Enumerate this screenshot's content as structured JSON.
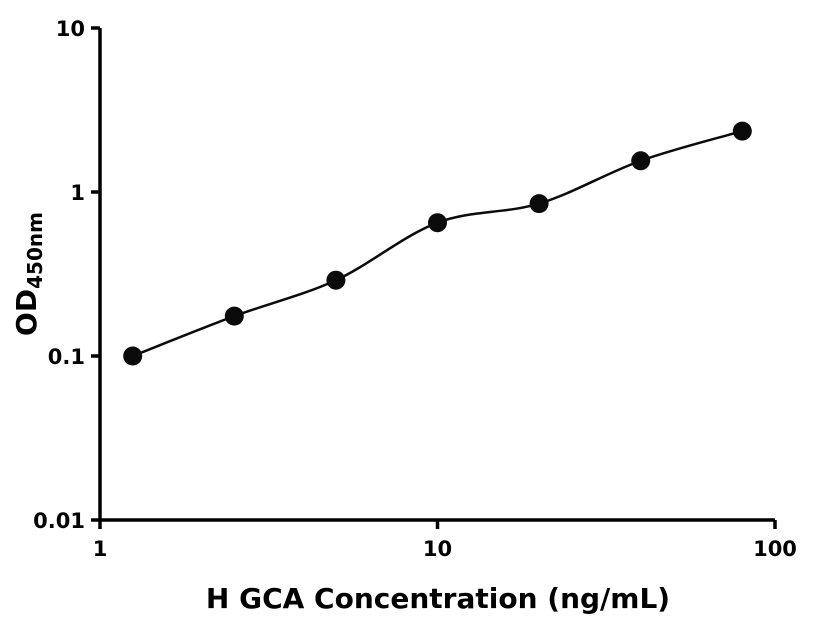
{
  "chart_data": {
    "type": "scatter",
    "title": "",
    "xlabel": "H GCA Concentration (ng/mL)",
    "ylabel": "OD",
    "ylabel_sub": "450nm",
    "xscale": "log",
    "yscale": "log",
    "xlim": [
      1,
      100
    ],
    "ylim": [
      0.01,
      10
    ],
    "x": [
      1.25,
      2.5,
      5,
      10,
      20,
      40,
      80
    ],
    "y": [
      0.1,
      0.175,
      0.29,
      0.65,
      0.85,
      1.55,
      2.35
    ],
    "x_ticks": {
      "values": [
        1,
        10,
        100
      ],
      "labels": [
        "1",
        "10",
        "100"
      ]
    },
    "y_ticks": {
      "values": [
        0.01,
        0.1,
        1,
        10
      ],
      "labels": [
        "0.01",
        "0.1",
        "1",
        "10"
      ]
    },
    "grid": false,
    "legend": null,
    "fit_curve": true,
    "marker_color": "#0b0b0b",
    "line_color": "#0b0b0b",
    "axis_color": "#000000"
  }
}
